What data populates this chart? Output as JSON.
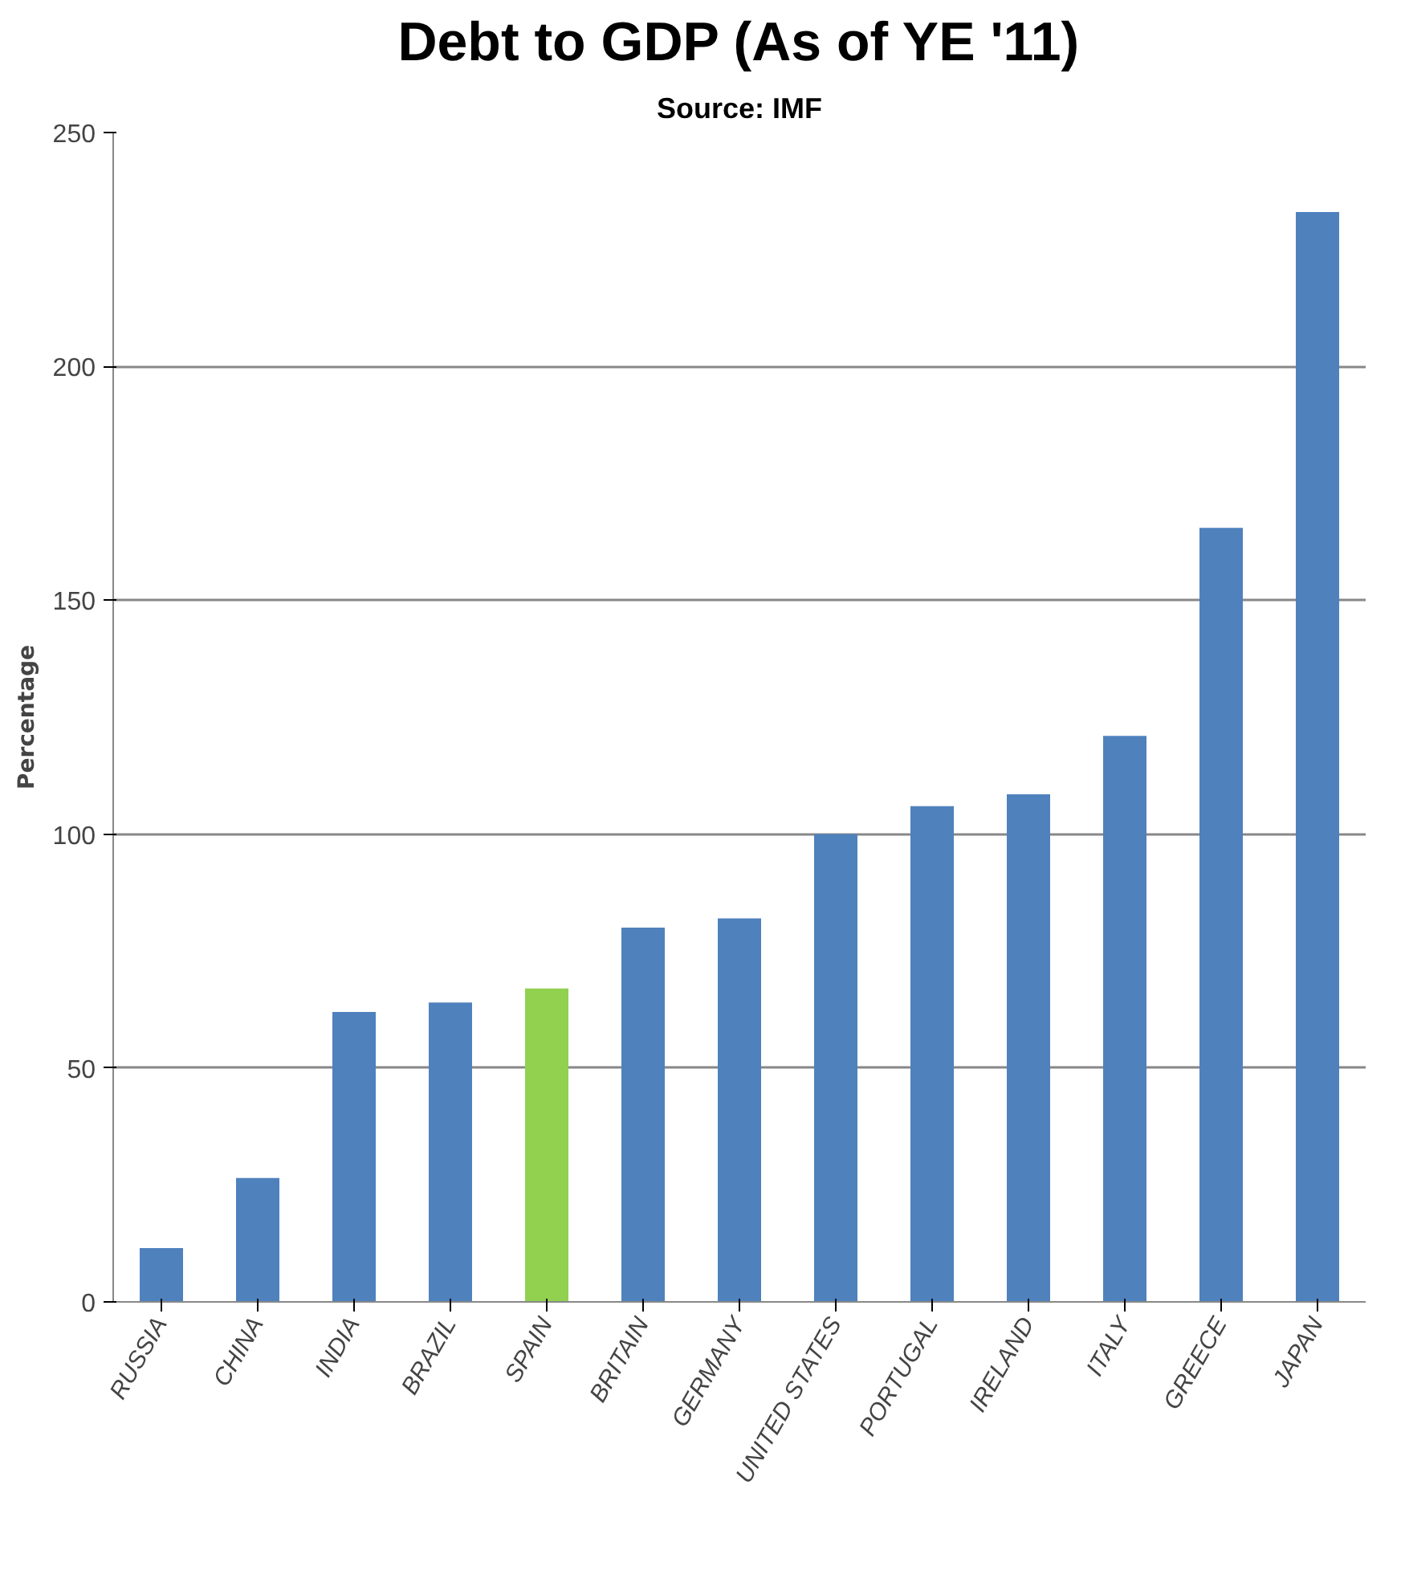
{
  "chart_data": {
    "type": "bar",
    "title": "Debt to GDP (As of YE '11)",
    "subtitle": "Source: IMF",
    "ylabel": "Percentage",
    "categories": [
      "RUSSIA",
      "CHINA",
      "INDIA",
      "BRAZIL",
      "SPAIN",
      "BRITAIN",
      "GERMANY",
      "UNITED STATES",
      "PORTUGAL",
      "IRELAND",
      "ITALY",
      "GREECE",
      "JAPAN"
    ],
    "values": [
      11.5,
      26.5,
      62,
      64,
      67,
      80,
      82,
      100,
      106,
      108.5,
      121,
      165.5,
      233
    ],
    "colors": [
      "#4f81bd",
      "#4f81bd",
      "#4f81bd",
      "#4f81bd",
      "#92d050",
      "#4f81bd",
      "#4f81bd",
      "#4f81bd",
      "#4f81bd",
      "#4f81bd",
      "#4f81bd",
      "#4f81bd",
      "#4f81bd"
    ],
    "ylim": [
      0,
      250
    ],
    "yticks": [
      0,
      50,
      100,
      150,
      200,
      250
    ],
    "grid": "y"
  }
}
